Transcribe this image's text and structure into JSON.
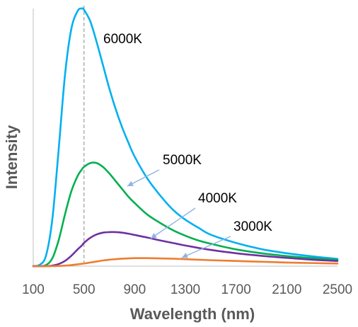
{
  "chart_data": {
    "type": "line",
    "title": "",
    "xlabel": "Wavelength (nm)",
    "ylabel": "Intensity",
    "xlim": [
      100,
      2500
    ],
    "ylim": [
      0,
      1
    ],
    "x_ticks": [
      100,
      500,
      900,
      1300,
      1700,
      2100,
      2500
    ],
    "y_ticks_shown": false,
    "grid": false,
    "legend": "none",
    "reference_line": {
      "x": 500,
      "style": "dashed",
      "color": "#a6a6a6"
    },
    "x": [
      100,
      150,
      200,
      250,
      300,
      350,
      400,
      450,
      483,
      500,
      550,
      600,
      650,
      700,
      750,
      800,
      850,
      900,
      1000,
      1100,
      1200,
      1300,
      1400,
      1500,
      1700,
      1900,
      2100,
      2300,
      2500
    ],
    "series": [
      {
        "name": "6000K",
        "color": "#00b0f0",
        "values": [
          0,
          0.005,
          0.04,
          0.18,
          0.45,
          0.74,
          0.92,
          0.99,
          1.0,
          0.995,
          0.95,
          0.87,
          0.78,
          0.69,
          0.61,
          0.54,
          0.48,
          0.425,
          0.34,
          0.275,
          0.22,
          0.18,
          0.15,
          0.122,
          0.09,
          0.066,
          0.05,
          0.038,
          0.028
        ]
      },
      {
        "name": "5000K",
        "color": "#00b050",
        "values": [
          0,
          0.0,
          0.004,
          0.03,
          0.1,
          0.2,
          0.29,
          0.35,
          0.375,
          0.385,
          0.4,
          0.4,
          0.385,
          0.36,
          0.33,
          0.3,
          0.27,
          0.245,
          0.2,
          0.168,
          0.14,
          0.118,
          0.1,
          0.087,
          0.065,
          0.05,
          0.039,
          0.031,
          0.024
        ]
      },
      {
        "name": "4000K",
        "color": "#7030a0",
        "values": [
          0,
          0,
          0,
          0.002,
          0.008,
          0.02,
          0.04,
          0.065,
          0.08,
          0.09,
          0.11,
          0.123,
          0.13,
          0.132,
          0.132,
          0.13,
          0.126,
          0.121,
          0.111,
          0.1,
          0.09,
          0.08,
          0.071,
          0.063,
          0.05,
          0.04,
          0.032,
          0.025,
          0.02
        ]
      },
      {
        "name": "3000K",
        "color": "#ed7d31",
        "values": [
          0,
          0,
          0,
          0,
          0.001,
          0.002,
          0.004,
          0.007,
          0.009,
          0.01,
          0.014,
          0.018,
          0.022,
          0.025,
          0.027,
          0.029,
          0.03,
          0.031,
          0.031,
          0.03,
          0.029,
          0.027,
          0.025,
          0.023,
          0.02,
          0.017,
          0.014,
          0.012,
          0.01
        ]
      }
    ],
    "annotations": [
      {
        "text": "6000K",
        "series": "6000K",
        "arrow": false
      },
      {
        "text": "5000K",
        "series": "5000K",
        "arrow": true,
        "arrow_color": "#8eb4e3"
      },
      {
        "text": "4000K",
        "series": "4000K",
        "arrow": true,
        "arrow_color": "#8eb4e3"
      },
      {
        "text": "3000K",
        "series": "3000K",
        "arrow": true,
        "arrow_color": "#8eb4e3"
      }
    ]
  }
}
